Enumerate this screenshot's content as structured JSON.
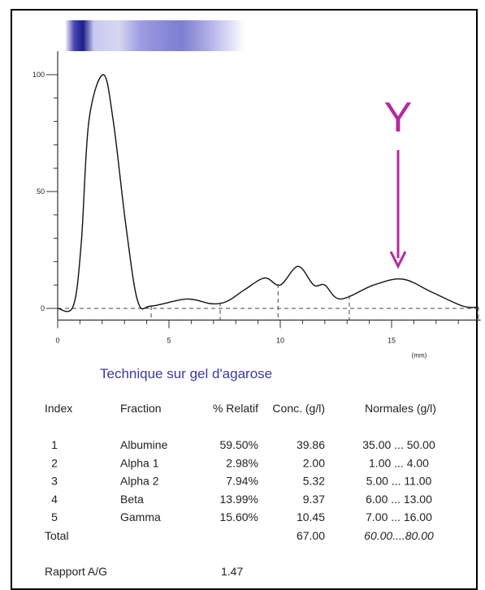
{
  "chart_data": {
    "type": "line",
    "x": [
      0,
      0.7,
      1.06,
      1.4,
      2.05,
      2.5,
      3.07,
      3.6,
      4.2,
      5.8,
      6.9,
      7.6,
      8.4,
      9.3,
      10.0,
      10.8,
      11.5,
      12.0,
      12.7,
      14.2,
      15.5,
      16.8,
      18.2,
      18.9
    ],
    "values": [
      0,
      1,
      28,
      80,
      100,
      80,
      35,
      3,
      1,
      4,
      2,
      3,
      8,
      13,
      10,
      18,
      10,
      10,
      4,
      10,
      12.5,
      7,
      1,
      0.5
    ],
    "color": "#111111",
    "xlim": [
      0,
      19
    ],
    "ylim": [
      -5,
      110
    ],
    "xticks": [
      0,
      5,
      10,
      15
    ],
    "yticks": [
      0,
      50,
      100
    ],
    "xticks_minor": [
      1,
      2,
      3,
      4,
      6,
      7,
      8,
      9,
      11,
      12,
      13,
      14,
      16,
      17,
      18
    ],
    "yticks_minor": [
      10,
      20,
      30,
      40,
      60,
      70,
      80,
      90
    ],
    "x_unit": "(mm)",
    "separators": [
      4.2,
      7.3,
      9.9,
      13.1,
      18.9
    ],
    "annotation": "Y",
    "annotation_color": "#b5289f"
  },
  "document": {
    "title": "Technique sur gel d'agarose",
    "headers": [
      "Index",
      "Fraction",
      "% Relatif",
      "Conc. (g/l)",
      "Normales (g/l)"
    ],
    "rows": [
      [
        "1",
        "Albumine",
        "59.50%",
        "39.86",
        "35.00 ... 50.00"
      ],
      [
        "2",
        "Alpha 1",
        "2.98%",
        "2.00",
        "1.00 ... 4.00"
      ],
      [
        "3",
        "Alpha 2",
        "7.94%",
        "5.32",
        "5.00 ... 11.00"
      ],
      [
        "4",
        "Beta",
        "13.99%",
        "9.37",
        "6.00 ... 13.00"
      ],
      [
        "5",
        "Gamma",
        "15.60%",
        "10.45",
        "7.00 ... 16.00"
      ]
    ],
    "total": [
      "Total",
      "67.00",
      "60.00....80.00"
    ],
    "ratio": [
      "Rapport A/G",
      "1.47"
    ]
  }
}
